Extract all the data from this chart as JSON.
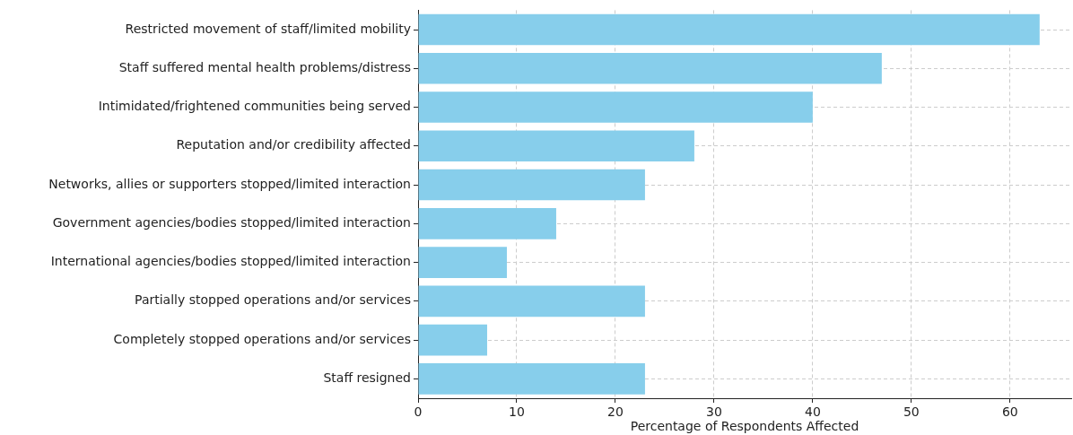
{
  "chart_data": {
    "type": "bar",
    "orientation": "horizontal",
    "xlabel": "Percentage of Respondents Affected",
    "categories": [
      "Restricted movement of staff/limited mobility",
      "Staff suffered mental health problems/distress",
      "Intimidated/frightened communities being served",
      "Reputation and/or credibility affected",
      "Networks, allies or supporters stopped/limited interaction",
      "Government agencies/bodies stopped/limited interaction",
      "International agencies/bodies stopped/limited interaction",
      "Partially stopped operations and/or services",
      "Completely stopped operations and/or services",
      "Staff resigned"
    ],
    "values": [
      63,
      47,
      40,
      28,
      23,
      14,
      9,
      23,
      7,
      23
    ],
    "color": "#87ceeb",
    "xlim": [
      0,
      66.2
    ],
    "xticks": [
      0,
      10,
      20,
      30,
      40,
      50,
      60
    ],
    "grid": true
  }
}
